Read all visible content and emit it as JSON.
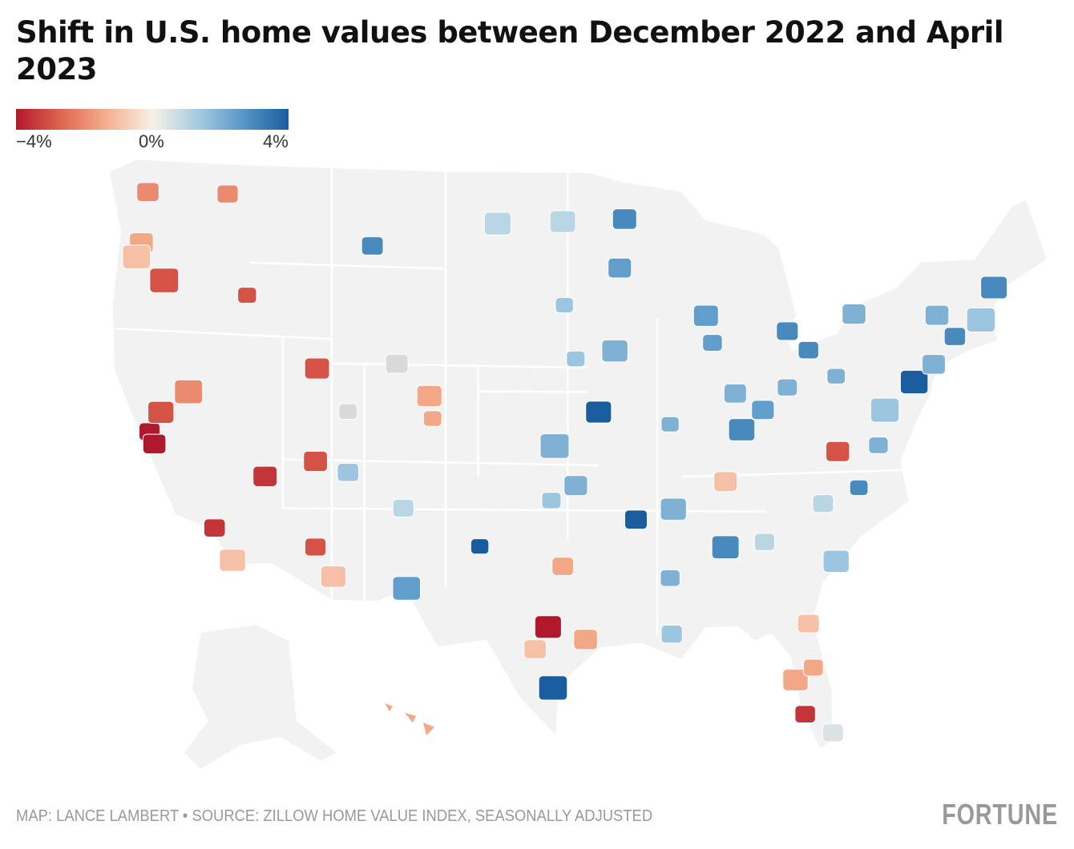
{
  "title": "Shift in U.S. home values between December 2022 and April 2023",
  "legend": {
    "min_label": "−4%",
    "mid_label": "0%",
    "max_label": "4%",
    "min": -4,
    "max": 4,
    "colors": [
      "#b2182b",
      "#e0664f",
      "#f4b08f",
      "#f7f1e6",
      "#a6cbe2",
      "#5797c8",
      "#1a5d9e"
    ]
  },
  "map": {
    "land_color": "#f2f2f2",
    "border_color": "#ffffff",
    "no_data_color": "#d9d9d9",
    "metros": [
      {
        "lat": 47.6,
        "lon": -122.3,
        "v": -2
      },
      {
        "lat": 45.5,
        "lon": -122.7,
        "v": -1.5
      },
      {
        "lat": 43.6,
        "lon": -116.2,
        "v": -3
      },
      {
        "lat": 37.8,
        "lon": -122.2,
        "v": -4
      },
      {
        "lat": 37.3,
        "lon": -121.9,
        "v": -4.5
      },
      {
        "lat": 38.6,
        "lon": -121.5,
        "v": -3
      },
      {
        "lat": 34.0,
        "lon": -118.2,
        "v": -3.5
      },
      {
        "lat": 32.7,
        "lon": -117.1,
        "v": -1
      },
      {
        "lat": 36.2,
        "lon": -115.1,
        "v": -3.5
      },
      {
        "lat": 33.4,
        "lon": -112.0,
        "v": -3
      },
      {
        "lat": 32.2,
        "lon": -110.9,
        "v": -1
      },
      {
        "lat": 40.7,
        "lon": -111.9,
        "v": -3
      },
      {
        "lat": 39.5,
        "lon": -119.8,
        "v": -2
      },
      {
        "lat": 39.7,
        "lon": -105.0,
        "v": -1.5
      },
      {
        "lat": 35.1,
        "lon": -106.6,
        "v": 1
      },
      {
        "lat": 30.3,
        "lon": -97.7,
        "v": -4
      },
      {
        "lat": 29.4,
        "lon": -98.5,
        "v": -1
      },
      {
        "lat": 29.8,
        "lon": -95.4,
        "v": -1.5
      },
      {
        "lat": 32.8,
        "lon": -96.8,
        "v": -1.5
      },
      {
        "lat": 35.5,
        "lon": -97.5,
        "v": 1.5
      },
      {
        "lat": 39.1,
        "lon": -94.6,
        "v": 4
      },
      {
        "lat": 38.6,
        "lon": -90.2,
        "v": 2
      },
      {
        "lat": 41.9,
        "lon": -87.6,
        "v": 2.5
      },
      {
        "lat": 45.0,
        "lon": -93.3,
        "v": 2.5
      },
      {
        "lat": 42.3,
        "lon": -83.0,
        "v": 3
      },
      {
        "lat": 41.5,
        "lon": -81.7,
        "v": 3
      },
      {
        "lat": 40.4,
        "lon": -80.0,
        "v": 2
      },
      {
        "lat": 40.0,
        "lon": -75.2,
        "v": 4
      },
      {
        "lat": 40.7,
        "lon": -74.0,
        "v": 2
      },
      {
        "lat": 42.4,
        "lon": -71.1,
        "v": 1.5
      },
      {
        "lat": 41.8,
        "lon": -72.7,
        "v": 3
      },
      {
        "lat": 43.7,
        "lon": -70.3,
        "v": 3
      },
      {
        "lat": 35.2,
        "lon": -80.8,
        "v": 1
      },
      {
        "lat": 35.8,
        "lon": -78.6,
        "v": 3
      },
      {
        "lat": 33.7,
        "lon": -84.4,
        "v": 1
      },
      {
        "lat": 36.2,
        "lon": -86.8,
        "v": -1
      },
      {
        "lat": 35.1,
        "lon": -90.0,
        "v": 2
      },
      {
        "lat": 30.0,
        "lon": -90.1,
        "v": 1.5
      },
      {
        "lat": 28.0,
        "lon": -82.5,
        "v": -1.5
      },
      {
        "lat": 28.5,
        "lon": -81.4,
        "v": -1.5
      },
      {
        "lat": 25.8,
        "lon": -80.2,
        "v": 0.5
      },
      {
        "lat": 30.3,
        "lon": -81.7,
        "v": -1
      },
      {
        "lat": 37.5,
        "lon": -77.4,
        "v": 2
      },
      {
        "lat": 38.9,
        "lon": -77.0,
        "v": 1.5
      },
      {
        "lat": 39.8,
        "lon": -86.2,
        "v": 2
      },
      {
        "lat": 40.0,
        "lon": -83.0,
        "v": 2
      },
      {
        "lat": 39.1,
        "lon": -84.5,
        "v": 2.5
      },
      {
        "lat": 38.3,
        "lon": -85.8,
        "v": 3
      },
      {
        "lat": 43.0,
        "lon": -88.0,
        "v": 2.5
      },
      {
        "lat": 41.3,
        "lon": -96.0,
        "v": 1.5
      },
      {
        "lat": 41.6,
        "lon": -93.6,
        "v": 2
      },
      {
        "lat": 45.8,
        "lon": -108.5,
        "v": 3
      },
      {
        "lat": 43.5,
        "lon": -96.7,
        "v": 1.5
      },
      {
        "lat": 46.9,
        "lon": -96.8,
        "v": 1
      },
      {
        "lat": 46.8,
        "lon": -100.8,
        "v": 1
      },
      {
        "lat": 47.0,
        "lon": -93.0,
        "v": 3
      },
      {
        "lat": 34.7,
        "lon": -92.3,
        "v": 4
      },
      {
        "lat": 33.5,
        "lon": -86.8,
        "v": 3
      },
      {
        "lat": 33.6,
        "lon": -101.9,
        "v": 4
      },
      {
        "lat": 31.8,
        "lon": -106.4,
        "v": 2.5
      },
      {
        "lat": 27.8,
        "lon": -97.4,
        "v": 4
      },
      {
        "lat": 26.6,
        "lon": -81.9,
        "v": -3.5
      },
      {
        "lat": 37.3,
        "lon": -79.9,
        "v": -3
      },
      {
        "lat": 32.8,
        "lon": -80.0,
        "v": 1.5
      },
      {
        "lat": 42.9,
        "lon": -78.9,
        "v": 2
      },
      {
        "lat": 42.7,
        "lon": -73.8,
        "v": 2
      },
      {
        "lat": 47.7,
        "lon": -117.4,
        "v": -2
      },
      {
        "lat": 44.0,
        "lon": -121.3,
        "v": -3
      },
      {
        "lat": 44.9,
        "lon": -123.0,
        "v": -1
      },
      {
        "lat": 38.8,
        "lon": -104.8,
        "v": -1.5
      },
      {
        "lat": 36.1,
        "lon": -96.0,
        "v": 2
      },
      {
        "lat": 37.7,
        "lon": -97.3,
        "v": 2
      },
      {
        "lat": 32.3,
        "lon": -90.2,
        "v": 2
      },
      {
        "lat": 36.9,
        "lon": -112.0,
        "v": -3
      },
      {
        "lat": 39.0,
        "lon": -110.0,
        "v": null
      },
      {
        "lat": 41.0,
        "lon": -107.0,
        "v": null
      },
      {
        "lat": 36.5,
        "lon": -110.0,
        "v": 1.5
      }
    ]
  },
  "footer": "MAP: LANCE LAMBERT • SOURCE: ZILLOW HOME VALUE INDEX, SEASONALLY ADJUSTED",
  "logo": "FORTUNE"
}
